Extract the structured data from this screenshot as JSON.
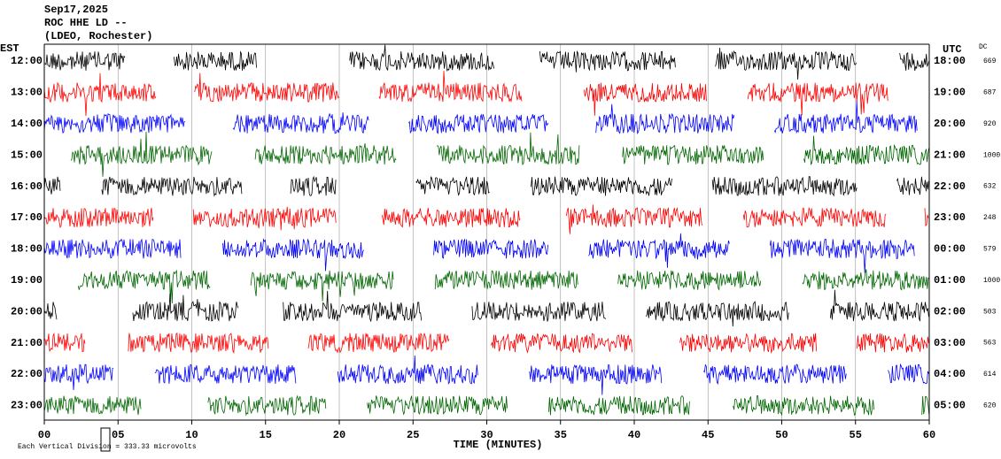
{
  "chart_data": {
    "type": "helicorder",
    "title_lines": [
      "Sep17,2025",
      "ROC HHE LD --",
      "(LDEO, Rochester)"
    ],
    "left_label": "EST",
    "right_label": "UTC",
    "dc_label": "DC",
    "xlabel": "TIME (MINUTES)",
    "footer": "Each Vertical Division =  333.33 microvolts",
    "xlim": [
      0,
      60
    ],
    "xticks": [
      {
        "value": 0,
        "label": "00"
      },
      {
        "value": 5,
        "label": "05"
      },
      10,
      15,
      20,
      25,
      30,
      35,
      40,
      45,
      50,
      55,
      60
    ],
    "grid": true,
    "rows": [
      {
        "est": "12:00",
        "utc": "18:00",
        "dc": 669,
        "color": "#000000",
        "segments": [
          [
            0,
            5.5
          ],
          [
            8.8,
            14.4
          ],
          [
            20.7,
            30.5
          ],
          [
            33.6,
            42.8
          ],
          [
            45.5,
            55.1
          ],
          [
            58,
            60
          ]
        ]
      },
      {
        "est": "13:00",
        "utc": "19:00",
        "dc": 687,
        "color": "#ff0000",
        "segments": [
          [
            0,
            7.6
          ],
          [
            10.2,
            20
          ],
          [
            22.7,
            32.4
          ],
          [
            36.6,
            44.9
          ],
          [
            47.7,
            57.2
          ]
        ]
      },
      {
        "est": "14:00",
        "utc": "20:00",
        "dc": 920,
        "color": "#0000ff",
        "segments": [
          [
            0,
            9.6
          ],
          [
            12.8,
            22
          ],
          [
            24.7,
            34.2
          ],
          [
            37.4,
            46.8
          ],
          [
            49.5,
            59.2
          ]
        ]
      },
      {
        "est": "15:00",
        "utc": "21:00",
        "dc": 1000,
        "color": "#006600",
        "segments": [
          [
            1.8,
            11.4
          ],
          [
            14.3,
            23.9
          ],
          [
            26.6,
            36.3
          ],
          [
            39.2,
            48.8
          ],
          [
            51.5,
            60
          ]
        ]
      },
      {
        "est": "16:00",
        "utc": "22:00",
        "dc": 632,
        "color": "#000000",
        "segments": [
          [
            0,
            1.1
          ],
          [
            3.9,
            13.4
          ],
          [
            16.7,
            19.8
          ],
          [
            25.2,
            30.2
          ],
          [
            33,
            42.6
          ],
          [
            45.3,
            55.1
          ],
          [
            57.8,
            60
          ]
        ]
      },
      {
        "est": "17:00",
        "utc": "23:00",
        "dc": 248,
        "color": "#ff0000",
        "segments": [
          [
            0,
            7.4
          ],
          [
            10.1,
            19.8
          ],
          [
            22.9,
            32.3
          ],
          [
            35.4,
            44.6
          ],
          [
            47.4,
            57.1
          ],
          [
            59.7,
            60
          ]
        ]
      },
      {
        "est": "18:00",
        "utc": "00:00",
        "dc": 579,
        "color": "#0000ff",
        "segments": [
          [
            0,
            9.3
          ],
          [
            12.1,
            21.7
          ],
          [
            26.4,
            34.2
          ],
          [
            36.9,
            46.5
          ],
          [
            49.2,
            59
          ]
        ]
      },
      {
        "est": "19:00",
        "utc": "01:00",
        "dc": 1000,
        "color": "#006600",
        "segments": [
          [
            2.3,
            11.3
          ],
          [
            14,
            23.7
          ],
          [
            26.5,
            36.2
          ],
          [
            38.9,
            48.6
          ],
          [
            51.4,
            60
          ]
        ]
      },
      {
        "est": "20:00",
        "utc": "02:00",
        "dc": 503,
        "color": "#000000",
        "segments": [
          [
            0,
            0.9
          ],
          [
            6,
            13.2
          ],
          [
            16.2,
            25.6
          ],
          [
            29,
            38.1
          ],
          [
            40.8,
            50.5
          ],
          [
            53.3,
            60
          ]
        ]
      },
      {
        "est": "21:00",
        "utc": "03:00",
        "dc": 563,
        "color": "#ff0000",
        "segments": [
          [
            0,
            2.8
          ],
          [
            5.7,
            15.2
          ],
          [
            17.9,
            27.5
          ],
          [
            30.3,
            39.9
          ],
          [
            43.1,
            52.4
          ],
          [
            55.1,
            60
          ]
        ]
      },
      {
        "est": "22:00",
        "utc": "04:00",
        "dc": 614,
        "color": "#0000ff",
        "segments": [
          [
            0,
            4.7
          ],
          [
            7.5,
            17.1
          ],
          [
            19.9,
            29.4
          ],
          [
            32.9,
            41.9
          ],
          [
            44.7,
            54.4
          ],
          [
            57.2,
            60
          ]
        ]
      },
      {
        "est": "23:00",
        "utc": "05:00",
        "dc": 620,
        "color": "#006600",
        "segments": [
          [
            0,
            6.6
          ],
          [
            11.1,
            19.1
          ],
          [
            21.9,
            31.4
          ],
          [
            34.2,
            43.8
          ],
          [
            46.7,
            56.3
          ],
          [
            59.5,
            60
          ]
        ]
      }
    ]
  }
}
